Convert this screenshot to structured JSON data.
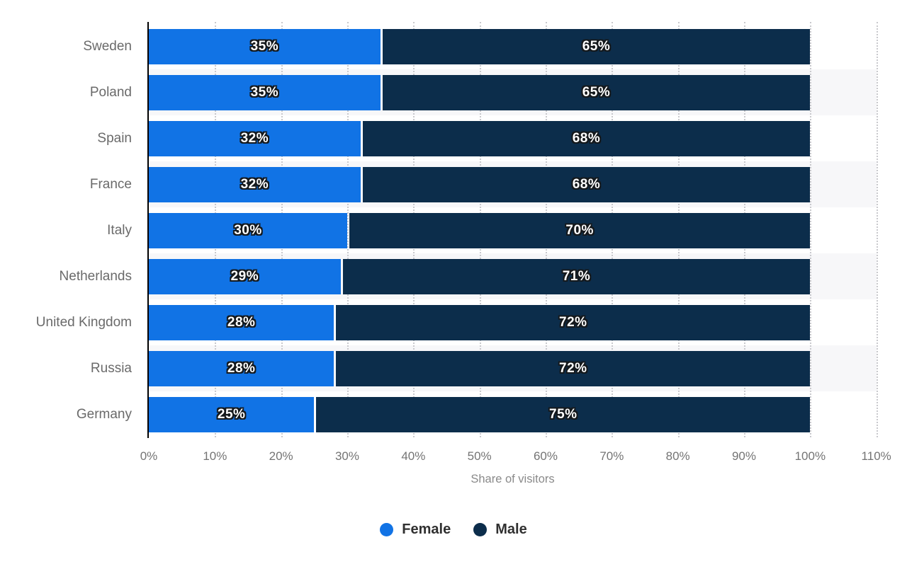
{
  "chart_data": {
    "type": "bar",
    "orientation": "horizontal",
    "stacked": true,
    "title": "",
    "categories": [
      "Sweden",
      "Poland",
      "Spain",
      "France",
      "Italy",
      "Netherlands",
      "United Kingdom",
      "Russia",
      "Germany"
    ],
    "series": [
      {
        "name": "Female",
        "color": "#1173e5",
        "values": [
          35,
          35,
          32,
          32,
          30,
          29,
          28,
          28,
          25
        ]
      },
      {
        "name": "Male",
        "color": "#0c2d4b",
        "values": [
          65,
          65,
          68,
          68,
          70,
          71,
          72,
          72,
          75
        ]
      }
    ],
    "value_suffix": "%",
    "xlabel": "Share of visitors",
    "ylabel": "",
    "xlim": [
      0,
      110
    ],
    "x_tick_labels": [
      "0%",
      "10%",
      "20%",
      "30%",
      "40%",
      "50%",
      "60%",
      "70%",
      "80%",
      "90%",
      "100%",
      "110%"
    ],
    "grid": "vertical-dotted",
    "legend_position": "bottom-center"
  },
  "colors": {
    "female": "#1173e5",
    "male": "#0c2d4b",
    "row_stripe": "#f7f7f9",
    "gridline": "#c9c9cd",
    "axis_line": "#000000",
    "category_label": "#6a6a6a",
    "tick_label": "#747474",
    "axis_title": "#8a8a8a",
    "value_label": "#ffffff",
    "value_label_outline": "#15191c",
    "legend_label": "#303030",
    "background": "#ffffff"
  }
}
